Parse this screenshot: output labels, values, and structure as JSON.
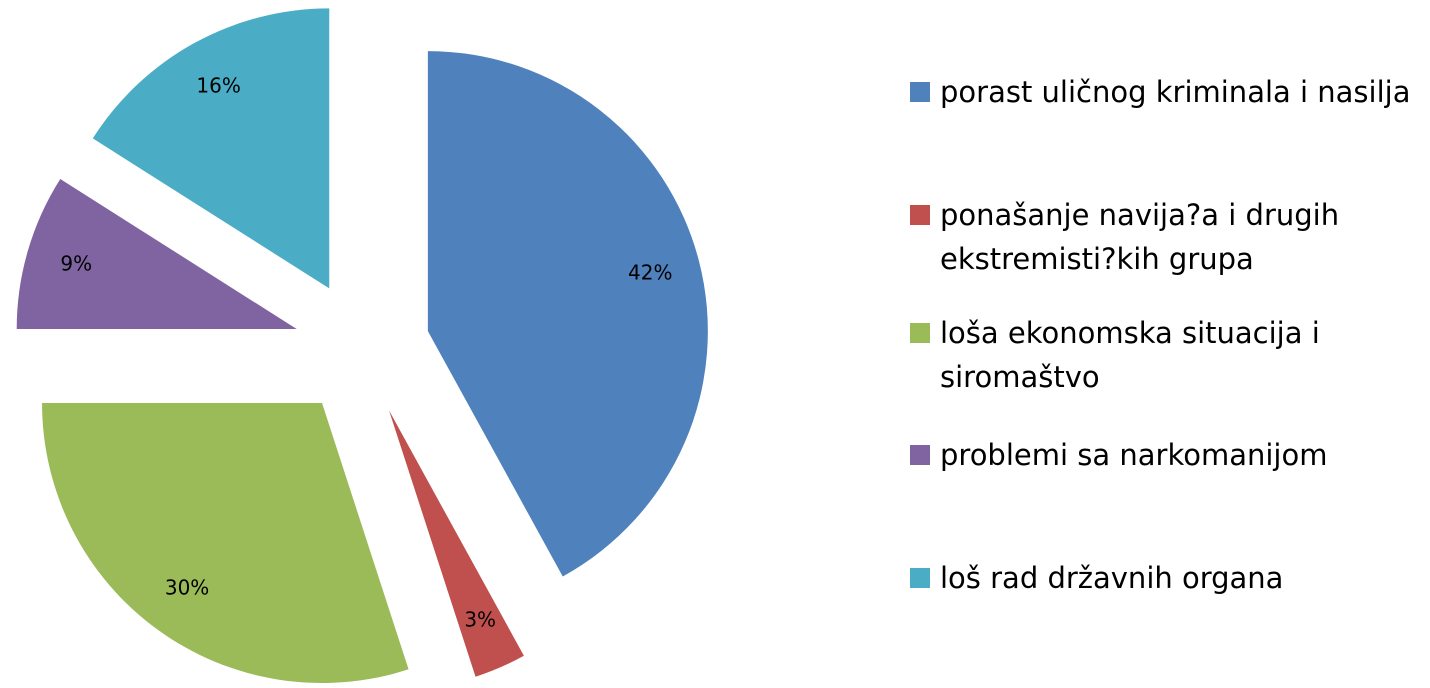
{
  "chart_data": {
    "type": "pie",
    "categories": [
      "porast uličnog kriminala i nasilja",
      "ponašanje navija?a i drugih ekstremisti?kih grupa",
      "loša ekonomska situacija i siromaštvo",
      "problemi sa narkomanijom",
      "loš rad državnih organa"
    ],
    "values": [
      42,
      3,
      30,
      9,
      16
    ],
    "value_labels": [
      "42%",
      "3%",
      "30%",
      "9%",
      "16%"
    ],
    "colors": [
      "#4f81bd",
      "#c0504d",
      "#9bbb59",
      "#8064a2",
      "#4bacc6"
    ],
    "legend": "right"
  }
}
